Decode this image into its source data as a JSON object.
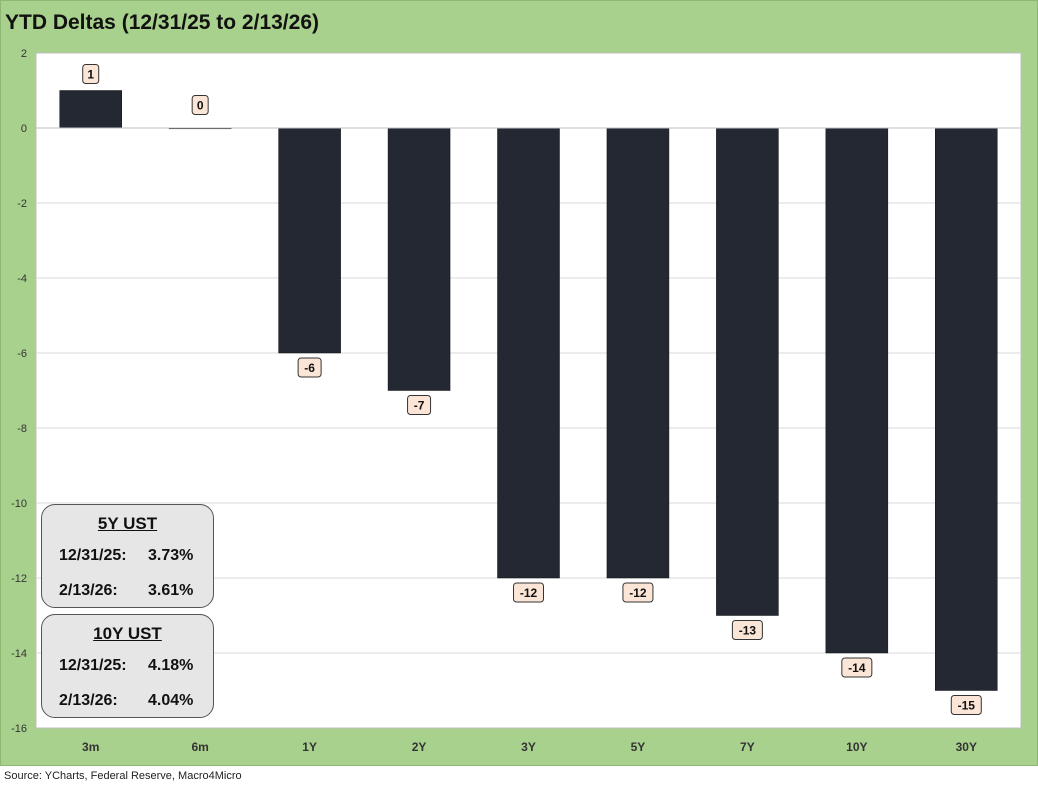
{
  "title": "YTD Deltas (12/31/25 to 2/13/26)",
  "source": "Source: YCharts, Federal Reserve, Macro4Micro",
  "colors": {
    "background": "#a9d18e",
    "plot": "#ffffff",
    "bar": "#232833",
    "label_fill": "#fbe5d6",
    "box_fill": "#e6e6e6"
  },
  "chart_data": {
    "type": "bar",
    "title": "YTD Deltas (12/31/25 to 2/13/26)",
    "categories": [
      "3m",
      "6m",
      "1Y",
      "2Y",
      "3Y",
      "5Y",
      "7Y",
      "10Y",
      "30Y"
    ],
    "values": [
      1,
      0,
      -6,
      -7,
      -12,
      -12,
      -13,
      -14,
      -15
    ],
    "xlabel": "",
    "ylabel": "",
    "ylim": [
      -16,
      2
    ],
    "yticks": [
      2,
      0,
      -2,
      -4,
      -6,
      -8,
      -10,
      -12,
      -14,
      -16
    ],
    "grid": true,
    "legend": "none"
  },
  "boxes": [
    {
      "title": "5Y UST",
      "rows": [
        {
          "date": "12/31/25:",
          "value": "3.73%"
        },
        {
          "date": "2/13/26:",
          "value": "3.61%"
        }
      ]
    },
    {
      "title": "10Y UST",
      "rows": [
        {
          "date": "12/31/25:",
          "value": "4.18%"
        },
        {
          "date": "2/13/26:",
          "value": "4.04%"
        }
      ]
    }
  ]
}
